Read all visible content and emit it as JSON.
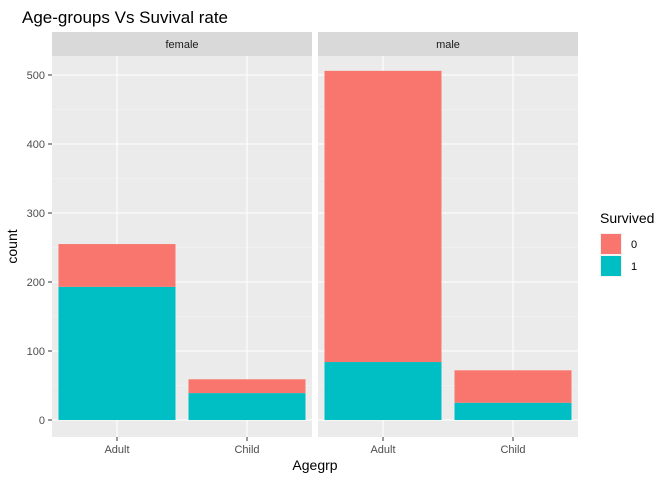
{
  "chart_data": {
    "type": "bar",
    "stacked": true,
    "title": "Age-groups Vs Suvival rate",
    "xlabel": "Agegrp",
    "ylabel": "count",
    "ylim": [
      0,
      530
    ],
    "yticks": [
      0,
      100,
      200,
      300,
      400,
      500
    ],
    "categories": [
      "Adult",
      "Child"
    ],
    "facets": [
      {
        "label": "female",
        "series": [
          {
            "name": "1",
            "values": [
              193,
              39
            ]
          },
          {
            "name": "0",
            "values": [
              62,
              20
            ]
          }
        ]
      },
      {
        "label": "male",
        "series": [
          {
            "name": "1",
            "values": [
              84,
              25
            ]
          },
          {
            "name": "0",
            "values": [
              422,
              47
            ]
          }
        ]
      }
    ],
    "legend": {
      "title": "Survived",
      "placement": "right",
      "entries": [
        {
          "label": "0",
          "color": "#F8766D"
        },
        {
          "label": "1",
          "color": "#00BFC4"
        }
      ]
    },
    "colors": {
      "0": "#F8766D",
      "1": "#00BFC4"
    },
    "grid": true
  }
}
